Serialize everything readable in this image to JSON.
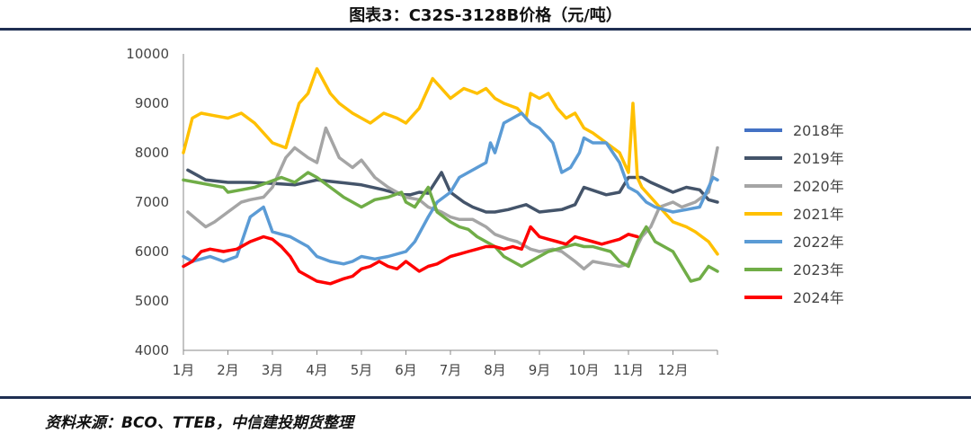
{
  "title": "图表3：C32S-3128B价格（元/吨）",
  "source": "资料来源：BCO、TTEB，中信建投期货整理",
  "chart_data": {
    "type": "line",
    "title": "图表3：C32S-3128B价格（元/吨）",
    "xlabel": "",
    "ylabel": "",
    "ylim": [
      4000,
      10000
    ],
    "yticks": [
      4000,
      5000,
      6000,
      7000,
      8000,
      9000,
      10000
    ],
    "xticks": [
      "1月",
      "2月",
      "3月",
      "4月",
      "5月",
      "6月",
      "7月",
      "8月",
      "9月",
      "10月",
      "11月",
      "12月"
    ],
    "xlim": [
      0,
      12
    ],
    "legend_position": "right",
    "grid": false,
    "series": [
      {
        "name": "2018年",
        "color": "#4472c4",
        "x": [],
        "y": []
      },
      {
        "name": "2019年",
        "color": "#44546a",
        "x": [
          0.1,
          0.5,
          1.0,
          1.5,
          2.0,
          2.5,
          3.0,
          3.5,
          4.0,
          4.5,
          4.7,
          4.9,
          5.1,
          5.3,
          5.5,
          5.8,
          6.0,
          6.3,
          6.5,
          6.8,
          7.0,
          7.3,
          7.5,
          7.7,
          8.0,
          8.5,
          8.8,
          9.0,
          9.5,
          9.8,
          10.0,
          10.3,
          10.5,
          11.0,
          11.3,
          11.6,
          11.8,
          12.0
        ],
        "y": [
          7650,
          7450,
          7400,
          7400,
          7380,
          7350,
          7450,
          7400,
          7350,
          7250,
          7200,
          7150,
          7150,
          7200,
          7180,
          7600,
          7200,
          7000,
          6900,
          6800,
          6800,
          6850,
          6900,
          6950,
          6800,
          6850,
          6950,
          7300,
          7150,
          7200,
          7500,
          7500,
          7400,
          7200,
          7300,
          7250,
          7050,
          7000
        ]
      },
      {
        "name": "2020年",
        "color": "#a5a5a5",
        "x": [
          0.1,
          0.3,
          0.5,
          0.7,
          1.0,
          1.3,
          1.5,
          1.8,
          2.0,
          2.3,
          2.5,
          2.8,
          3.0,
          3.2,
          3.5,
          3.8,
          4.0,
          4.3,
          4.6,
          5.0,
          5.3,
          5.5,
          5.8,
          6.0,
          6.2,
          6.5,
          6.8,
          7.0,
          7.3,
          7.5,
          7.8,
          8.0,
          8.3,
          8.5,
          8.8,
          9.0,
          9.2,
          9.5,
          9.8,
          10.0,
          10.3,
          10.5,
          10.7,
          11.0,
          11.2,
          11.5,
          11.8,
          12.0
        ],
        "y": [
          6800,
          6650,
          6500,
          6600,
          6800,
          7000,
          7050,
          7100,
          7300,
          7900,
          8100,
          7900,
          7800,
          8500,
          7900,
          7700,
          7850,
          7500,
          7300,
          7100,
          7050,
          6900,
          6800,
          6700,
          6650,
          6650,
          6500,
          6350,
          6250,
          6200,
          6050,
          6000,
          6050,
          6000,
          5800,
          5650,
          5800,
          5750,
          5700,
          5750,
          6300,
          6500,
          6900,
          7000,
          6900,
          7000,
          7200,
          8100
        ]
      },
      {
        "name": "2021年",
        "color": "#ffc000",
        "x": [
          0.0,
          0.2,
          0.4,
          0.7,
          1.0,
          1.3,
          1.6,
          2.0,
          2.3,
          2.6,
          2.8,
          3.0,
          3.3,
          3.5,
          3.8,
          4.0,
          4.2,
          4.5,
          4.8,
          5.0,
          5.3,
          5.6,
          5.8,
          6.0,
          6.3,
          6.6,
          6.8,
          7.0,
          7.2,
          7.5,
          7.7,
          7.8,
          8.0,
          8.2,
          8.4,
          8.6,
          8.8,
          9.0,
          9.2,
          9.5,
          9.8,
          10.0,
          10.1,
          10.2,
          10.3,
          10.5,
          10.8,
          11.0,
          11.3,
          11.5,
          11.8,
          12.0
        ],
        "y": [
          8000,
          8700,
          8800,
          8750,
          8700,
          8800,
          8600,
          8200,
          8100,
          9000,
          9200,
          9700,
          9200,
          9000,
          8800,
          8700,
          8600,
          8800,
          8700,
          8600,
          8900,
          9500,
          9300,
          9100,
          9300,
          9200,
          9300,
          9100,
          9000,
          8900,
          8700,
          9200,
          9100,
          9200,
          8900,
          8700,
          8800,
          8500,
          8400,
          8200,
          8000,
          7600,
          9000,
          7500,
          7300,
          7100,
          6800,
          6600,
          6500,
          6400,
          6200,
          5950
        ]
      },
      {
        "name": "2022年",
        "color": "#5b9bd5",
        "x": [
          0.0,
          0.2,
          0.4,
          0.6,
          0.9,
          1.2,
          1.5,
          1.8,
          2.0,
          2.2,
          2.4,
          2.6,
          2.8,
          3.0,
          3.3,
          3.6,
          3.8,
          4.0,
          4.3,
          4.6,
          5.0,
          5.2,
          5.5,
          5.7,
          6.0,
          6.2,
          6.4,
          6.6,
          6.8,
          6.9,
          7.0,
          7.2,
          7.4,
          7.6,
          7.8,
          8.0,
          8.3,
          8.5,
          8.7,
          8.9,
          9.0,
          9.2,
          9.5,
          9.8,
          10.0,
          10.2,
          10.4,
          10.6,
          10.8,
          11.0,
          11.3,
          11.6,
          11.9,
          12.0
        ],
        "y": [
          5900,
          5800,
          5850,
          5900,
          5800,
          5900,
          6700,
          6900,
          6400,
          6350,
          6300,
          6200,
          6100,
          5900,
          5800,
          5750,
          5800,
          5900,
          5850,
          5900,
          6000,
          6200,
          6700,
          7000,
          7200,
          7500,
          7600,
          7700,
          7800,
          8200,
          8000,
          8600,
          8700,
          8800,
          8600,
          8500,
          8200,
          7600,
          7700,
          8000,
          8300,
          8200,
          8200,
          7800,
          7300,
          7200,
          7000,
          6900,
          6850,
          6800,
          6850,
          6900,
          7500,
          7450
        ]
      },
      {
        "name": "2023年",
        "color": "#70ad47",
        "x": [
          0.0,
          0.3,
          0.6,
          0.9,
          1.0,
          1.3,
          1.6,
          1.9,
          2.2,
          2.5,
          2.8,
          3.0,
          3.3,
          3.6,
          3.8,
          4.0,
          4.3,
          4.6,
          4.9,
          5.0,
          5.2,
          5.5,
          5.7,
          6.0,
          6.2,
          6.4,
          6.6,
          6.8,
          7.0,
          7.2,
          7.4,
          7.6,
          7.8,
          8.0,
          8.2,
          8.4,
          8.6,
          8.8,
          9.0,
          9.2,
          9.4,
          9.6,
          9.8,
          10.0,
          10.2,
          10.4,
          10.6,
          10.8,
          11.0,
          11.2,
          11.4,
          11.6,
          11.8,
          12.0
        ],
        "y": [
          7450,
          7400,
          7350,
          7300,
          7200,
          7250,
          7300,
          7400,
          7500,
          7400,
          7600,
          7500,
          7300,
          7100,
          7000,
          6900,
          7050,
          7100,
          7200,
          7000,
          6900,
          7300,
          6800,
          6600,
          6500,
          6450,
          6300,
          6200,
          6100,
          5900,
          5800,
          5700,
          5800,
          5900,
          6000,
          6050,
          6100,
          6150,
          6100,
          6100,
          6050,
          6000,
          5800,
          5700,
          6200,
          6500,
          6200,
          6100,
          6000,
          5700,
          5400,
          5450,
          5700,
          5600
        ]
      },
      {
        "name": "2024年",
        "color": "#ff0000",
        "x": [
          0.0,
          0.2,
          0.4,
          0.6,
          0.9,
          1.2,
          1.5,
          1.8,
          2.0,
          2.2,
          2.4,
          2.6,
          2.8,
          3.0,
          3.3,
          3.6,
          3.8,
          4.0,
          4.2,
          4.4,
          4.6,
          4.8,
          5.0,
          5.3,
          5.5,
          5.7,
          6.0,
          6.2,
          6.4,
          6.6,
          6.8,
          7.0,
          7.2,
          7.4,
          7.6,
          7.8,
          8.0,
          8.2,
          8.4,
          8.6,
          8.8,
          9.0,
          9.2,
          9.4,
          9.6,
          9.8,
          10.0,
          10.2
        ],
        "y": [
          5700,
          5800,
          6000,
          6050,
          6000,
          6050,
          6200,
          6300,
          6250,
          6100,
          5900,
          5600,
          5500,
          5400,
          5350,
          5450,
          5500,
          5650,
          5700,
          5800,
          5700,
          5650,
          5800,
          5600,
          5700,
          5750,
          5900,
          5950,
          6000,
          6050,
          6100,
          6100,
          6050,
          6100,
          6050,
          6500,
          6300,
          6250,
          6200,
          6150,
          6300,
          6250,
          6200,
          6150,
          6200,
          6250,
          6350,
          6300
        ]
      }
    ]
  }
}
